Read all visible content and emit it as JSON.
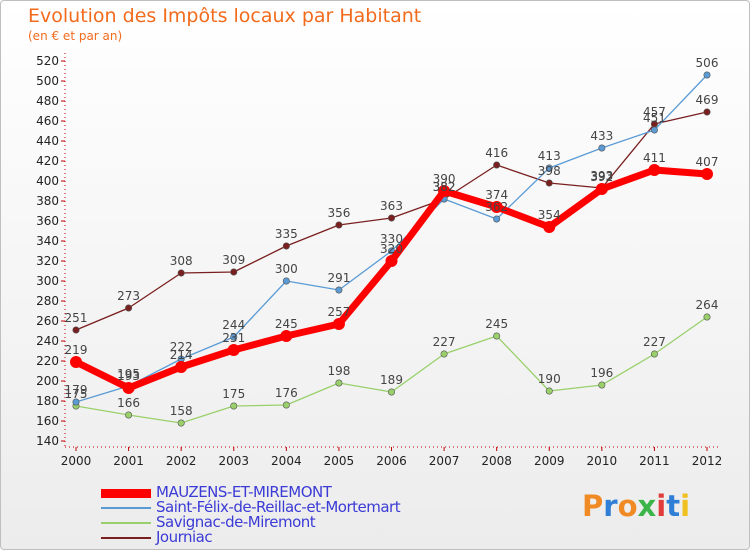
{
  "header": {
    "title": "Evolution des Impôts locaux par Habitant",
    "subtitle": "(en € et par an)"
  },
  "logo": {
    "text": "Proxiti",
    "colors": [
      "#f08a24",
      "#2f7fd6",
      "#f08a24",
      "#3bb54a",
      "#e23b3b",
      "#2f7fd6",
      "#f0c020"
    ]
  },
  "chart_data": {
    "type": "line",
    "x": [
      "2000",
      "2001",
      "2002",
      "2003",
      "2004",
      "2005",
      "2006",
      "2007",
      "2008",
      "2009",
      "2010",
      "2011",
      "2012"
    ],
    "ylim": [
      140,
      520
    ],
    "yticks": [
      140,
      160,
      180,
      200,
      220,
      240,
      260,
      280,
      300,
      320,
      340,
      360,
      380,
      400,
      420,
      440,
      460,
      480,
      500,
      520
    ],
    "grid": false,
    "legend_position": "bottom-left",
    "series": [
      {
        "name": "MAUZENS-ET-MIREMONT",
        "color": "#ff0000",
        "values": [
          219,
          193,
          214,
          231,
          245,
          257,
          320,
          390,
          374,
          354,
          392,
          411,
          407
        ]
      },
      {
        "name": "Saint-Félix-de-Reillac-et-Mortemart",
        "color": "#5b9bd5",
        "values": [
          179,
          195,
          222,
          244,
          300,
          291,
          330,
          382,
          362,
          413,
          433,
          451,
          506
        ]
      },
      {
        "name": "Savignac-de-Miremont",
        "color": "#99d06b",
        "values": [
          175,
          166,
          158,
          175,
          176,
          198,
          189,
          227,
          245,
          190,
          196,
          227,
          264
        ]
      },
      {
        "name": "Journiac",
        "color": "#7a1f1f",
        "values": [
          251,
          273,
          308,
          309,
          335,
          356,
          363,
          382,
          416,
          398,
          393,
          457,
          469
        ]
      }
    ]
  }
}
